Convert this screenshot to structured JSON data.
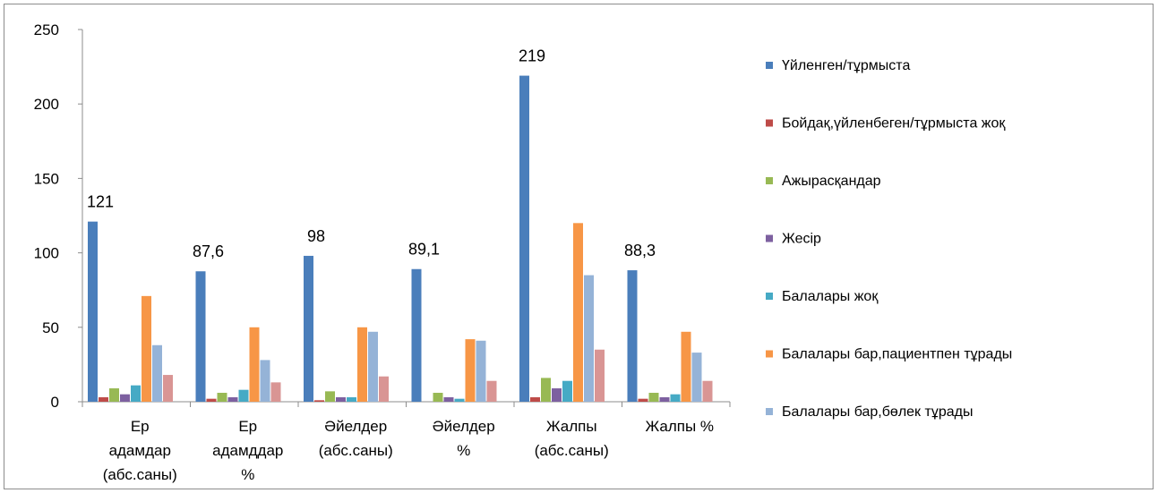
{
  "chart_data": {
    "type": "bar",
    "title": "",
    "xlabel": "",
    "ylabel": "",
    "ylim": [
      0,
      250
    ],
    "yticks": [
      0,
      50,
      100,
      150,
      200,
      250
    ],
    "grid": false,
    "legend": "right",
    "categories": [
      [
        "Ер",
        "адамдар",
        "(абс.саны)"
      ],
      [
        "Ер",
        "адамддар",
        "%"
      ],
      [
        "Әйелдер",
        "(абс.саны)"
      ],
      [
        "Әйелдер",
        "%"
      ],
      [
        "Жалпы",
        "(абс.саны)"
      ],
      [
        "Жалпы %"
      ]
    ],
    "data_labels": [
      "121",
      "87,6",
      "98",
      "89,1",
      "219",
      "88,3"
    ],
    "series": [
      {
        "name": "Үйленген/тұрмыста",
        "color": "#4a7ebb",
        "values": [
          121,
          87.6,
          98,
          89.1,
          219,
          88.3
        ]
      },
      {
        "name": "Бойдақ,үйленбеген/тұрмыста жоқ",
        "color": "#be4b48",
        "values": [
          3,
          2,
          1,
          0,
          3,
          2
        ]
      },
      {
        "name": "Ажырасқандар",
        "color": "#98b954",
        "values": [
          9,
          6,
          7,
          6,
          16,
          6
        ]
      },
      {
        "name": "Жесір",
        "color": "#7d60a0",
        "values": [
          5,
          3,
          3,
          3,
          9,
          3
        ]
      },
      {
        "name": "Балалары жоқ",
        "color": "#46aac5",
        "values": [
          11,
          8,
          3,
          2,
          14,
          5
        ]
      },
      {
        "name": "Балалары бар,пациентпен тұрады",
        "color": "#f79646",
        "values": [
          71,
          50,
          50,
          42,
          120,
          47
        ]
      },
      {
        "name": "Балалары бар,бөлек тұрады",
        "color": "#95b3d7",
        "values": [
          38,
          28,
          47,
          41,
          85,
          33
        ]
      },
      {
        "name": "",
        "color": "#d99594",
        "values": [
          18,
          13,
          17,
          14,
          35,
          14
        ]
      }
    ]
  }
}
